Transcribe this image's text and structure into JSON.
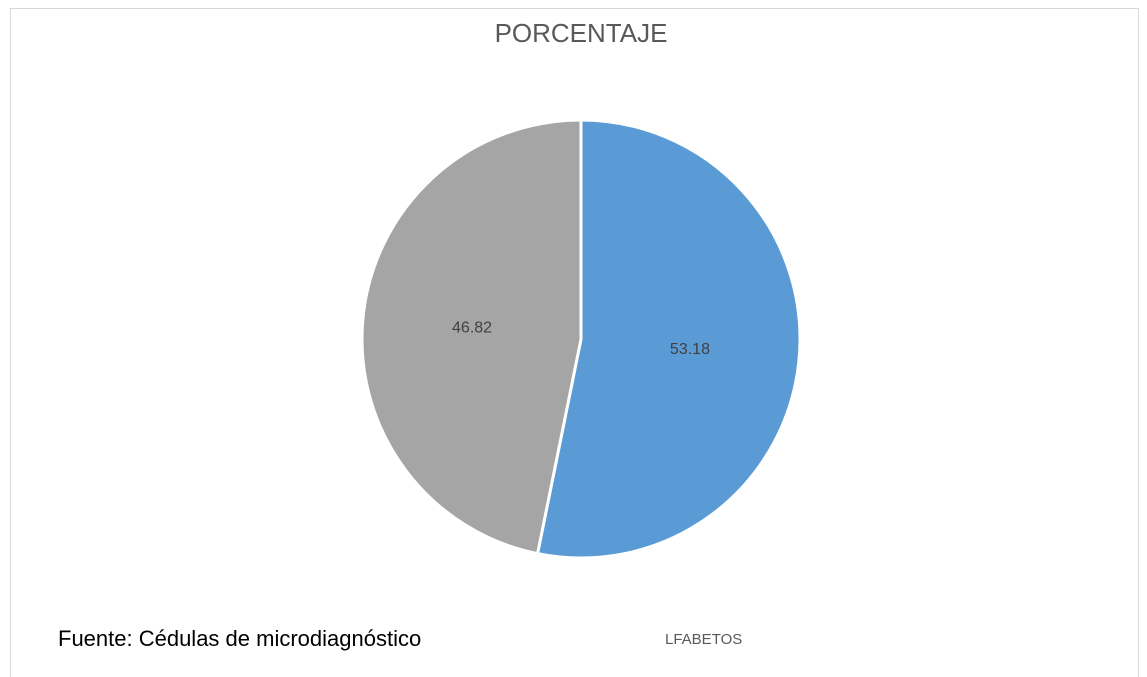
{
  "chart_data": {
    "type": "pie",
    "title": "PORCENTAJE",
    "values": [
      53.18,
      46.82
    ],
    "colors": [
      "#5b9bd5",
      "#a5a5a5"
    ],
    "annotations": [
      "Fuente: Cédulas de microdiagnóstico",
      "LFABETOS"
    ]
  }
}
